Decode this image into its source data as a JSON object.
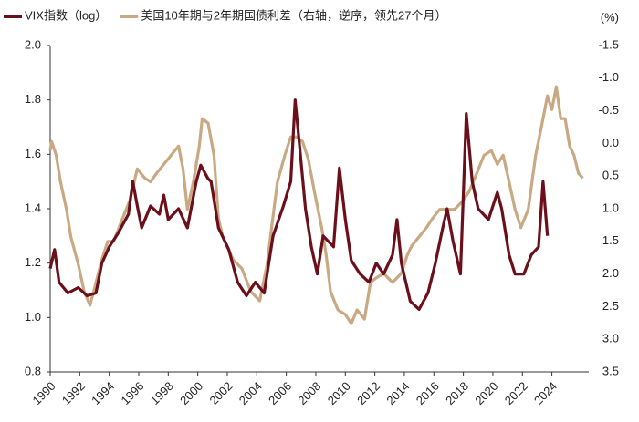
{
  "chart_data": {
    "type": "line",
    "legend_position": "top",
    "y2label": "(%)",
    "xlim": [
      1990,
      2026.5
    ],
    "xticks": [
      1990,
      1992,
      1994,
      1996,
      1998,
      2000,
      2002,
      2004,
      2006,
      2008,
      2010,
      2012,
      2014,
      2016,
      2018,
      2020,
      2022,
      2024
    ],
    "ylim": [
      0.8,
      2.0
    ],
    "yticks": [
      {
        "value": 2,
        "label": "2.0"
      },
      1.8,
      1.6,
      1.4,
      1.2,
      {
        "value": 1,
        "label": "1.0"
      },
      0.8
    ],
    "y2lim": [
      3.5,
      -1.5
    ],
    "y2ticks": [
      -1.5,
      {
        "value": -1,
        "label": "-1.0"
      },
      -0.5,
      {
        "value": 0,
        "label": "0.0"
      },
      0.5,
      {
        "value": 1,
        "label": "1.0"
      },
      1.5,
      {
        "value": 2,
        "label": "2.0"
      },
      2.5,
      {
        "value": 3,
        "label": "3.0"
      },
      3.5
    ],
    "grid": false,
    "series": [
      {
        "name": "VIX指数（log）",
        "color": "#6b0f1a",
        "x": [
          1990.0,
          1990.3,
          1990.6,
          1991.2,
          1991.9,
          1992.5,
          1993.1,
          1993.5,
          1994.0,
          1994.6,
          1995.3,
          1995.6,
          1995.9,
          1996.2,
          1996.8,
          1997.4,
          1997.7,
          1998.0,
          1998.7,
          1999.3,
          1999.9,
          2000.2,
          2000.7,
          2000.9,
          2001.4,
          2002.1,
          2002.7,
          2003.3,
          2003.9,
          2004.5,
          2005.1,
          2005.8,
          2006.3,
          2006.6,
          2006.9,
          2007.3,
          2007.7,
          2008.1,
          2008.5,
          2009.2,
          2009.6,
          2010.0,
          2010.4,
          2011.0,
          2011.6,
          2012.1,
          2012.6,
          2013.2,
          2013.5,
          2013.8,
          2014.4,
          2015.0,
          2015.6,
          2016.1,
          2016.6,
          2016.9,
          2017.3,
          2017.8,
          2018.2,
          2018.6,
          2019.0,
          2019.7,
          2020.3,
          2020.6,
          2021.1,
          2021.5,
          2022.1,
          2022.6,
          2023.1,
          2023.4,
          2023.7
        ],
        "values": [
          1.18,
          1.25,
          1.13,
          1.09,
          1.11,
          1.08,
          1.09,
          1.2,
          1.26,
          1.31,
          1.38,
          1.5,
          1.41,
          1.33,
          1.41,
          1.38,
          1.45,
          1.36,
          1.4,
          1.33,
          1.5,
          1.56,
          1.51,
          1.5,
          1.33,
          1.25,
          1.13,
          1.08,
          1.13,
          1.09,
          1.3,
          1.41,
          1.5,
          1.8,
          1.63,
          1.4,
          1.26,
          1.16,
          1.3,
          1.26,
          1.55,
          1.36,
          1.21,
          1.16,
          1.13,
          1.2,
          1.16,
          1.23,
          1.36,
          1.2,
          1.06,
          1.03,
          1.09,
          1.2,
          1.33,
          1.4,
          1.28,
          1.16,
          1.75,
          1.5,
          1.4,
          1.36,
          1.46,
          1.4,
          1.23,
          1.16,
          1.16,
          1.23,
          1.26,
          1.5,
          1.3
        ]
      },
      {
        "name": "美国10年期与2年期国债利差（右轴，逆序，领先27个月）",
        "color": "#c9a983",
        "axis": "y2",
        "x": [
          1990.0,
          1990.1,
          1990.4,
          1990.7,
          1991.1,
          1991.4,
          1991.9,
          1992.3,
          1992.7,
          1993.1,
          1993.5,
          1993.9,
          1994.3,
          1994.9,
          1995.4,
          1995.9,
          1996.4,
          1996.8,
          1997.2,
          1997.7,
          1998.2,
          1998.7,
          1999.0,
          1999.3,
          1999.7,
          2000.1,
          2000.3,
          2000.7,
          2001.1,
          2001.4,
          2001.7,
          2002.4,
          2003.0,
          2003.6,
          2004.2,
          2004.7,
          2005.0,
          2005.4,
          2005.9,
          2006.3,
          2006.7,
          2007.1,
          2007.5,
          2007.9,
          2008.4,
          2008.7,
          2009.0,
          2009.5,
          2010.0,
          2010.4,
          2010.8,
          2011.3,
          2011.7,
          2012.1,
          2012.6,
          2013.2,
          2013.8,
          2014.2,
          2014.5,
          2015.0,
          2015.5,
          2015.9,
          2016.4,
          2016.9,
          2017.4,
          2018.0,
          2018.4,
          2018.9,
          2019.4,
          2019.9,
          2020.3,
          2020.7,
          2021.1,
          2021.5,
          2021.9,
          2022.4,
          2022.9,
          2023.4,
          2023.7,
          2024.0,
          2024.3,
          2024.6,
          2024.9,
          2025.2,
          2025.5,
          2025.8,
          2026.1
        ],
        "values": [
          0.11,
          -0.03,
          0.18,
          0.59,
          1.01,
          1.43,
          1.85,
          2.27,
          2.48,
          2.13,
          1.78,
          1.5,
          1.5,
          1.15,
          0.87,
          0.39,
          0.53,
          0.59,
          0.46,
          0.32,
          0.18,
          0.04,
          0.39,
          1.01,
          0.59,
          0.04,
          -0.38,
          -0.31,
          0.18,
          1.15,
          1.43,
          1.78,
          1.92,
          2.27,
          2.41,
          1.85,
          1.29,
          0.59,
          0.18,
          -0.1,
          -0.1,
          -0.03,
          0.25,
          0.73,
          1.29,
          1.71,
          2.27,
          2.55,
          2.62,
          2.76,
          2.55,
          2.69,
          2.13,
          2.06,
          1.99,
          2.13,
          1.99,
          1.71,
          1.57,
          1.43,
          1.29,
          1.15,
          1.01,
          1.01,
          1.01,
          0.87,
          0.73,
          0.46,
          0.18,
          0.11,
          0.32,
          0.18,
          0.59,
          1.01,
          1.29,
          1.01,
          0.18,
          -0.38,
          -0.73,
          -0.52,
          -0.87,
          -0.38,
          -0.38,
          0.04,
          0.18,
          0.46,
          0.53
        ]
      }
    ]
  }
}
